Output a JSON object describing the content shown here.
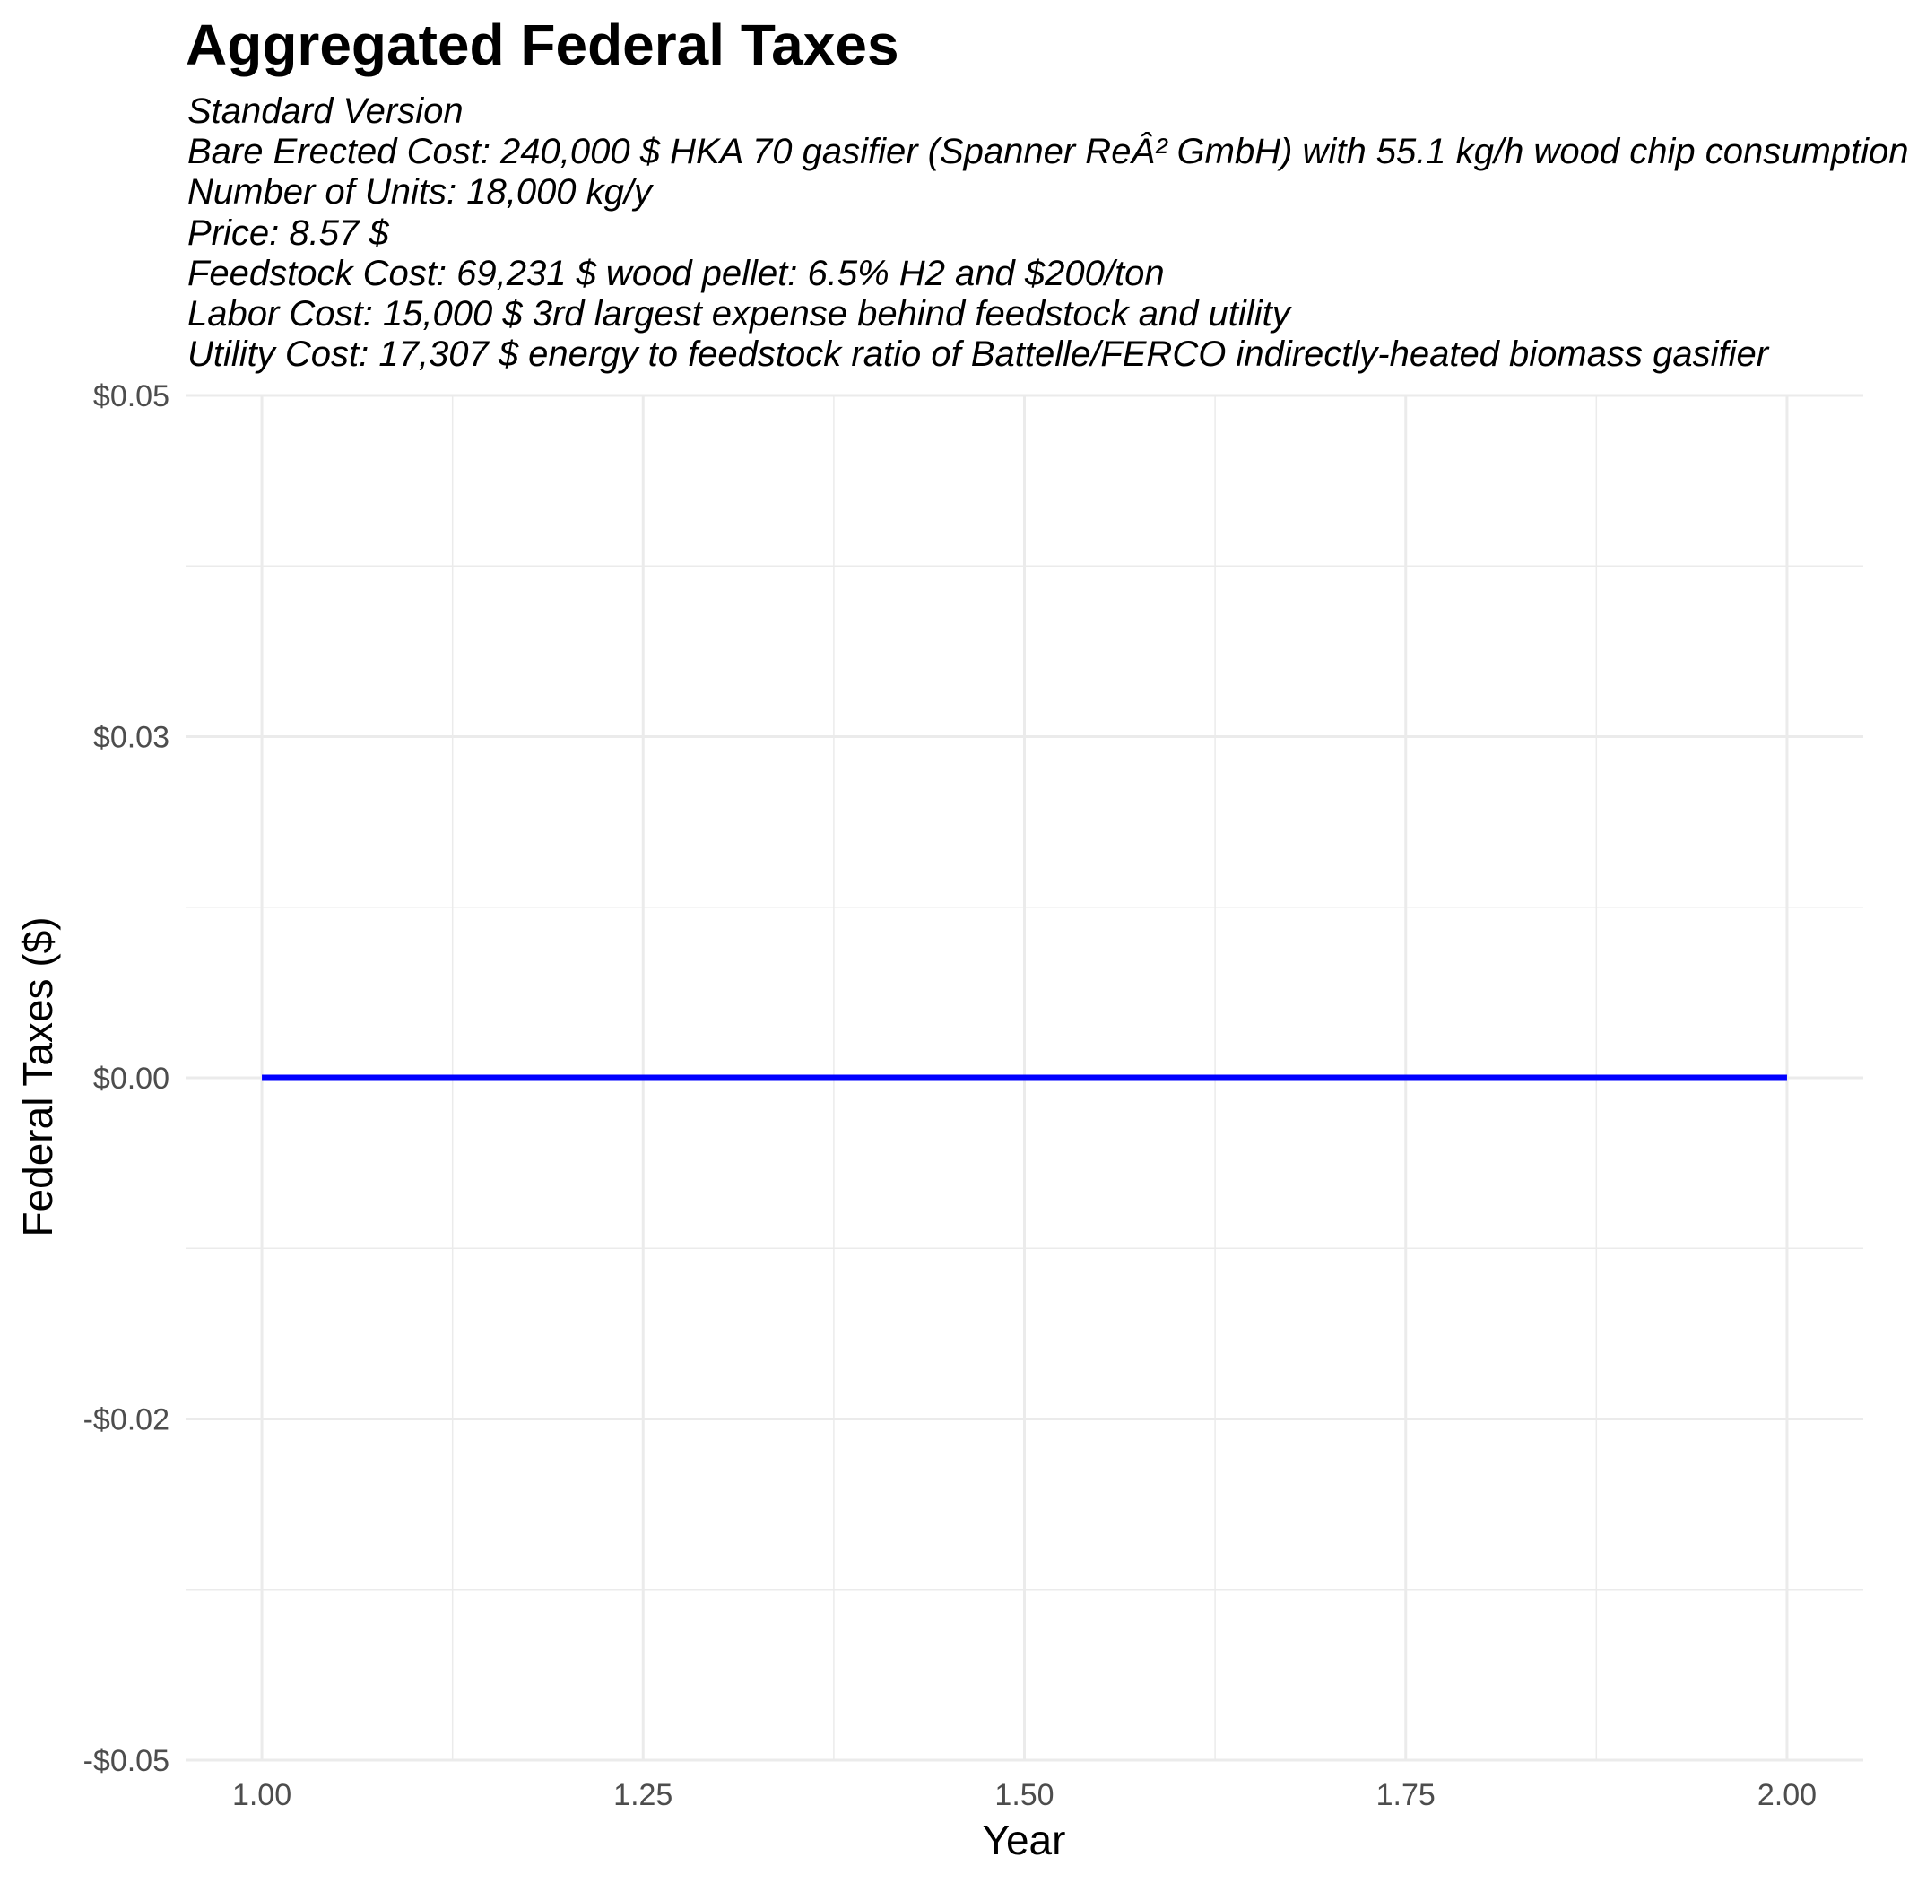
{
  "chart_data": {
    "type": "line",
    "title": "Aggregated Federal Taxes",
    "subtitle_lines": [
      "Standard Version",
      "Bare Erected Cost: 240,000 $ HKA 70 gasifier (Spanner ReÂ² GmbH) with 55.1 kg/h wood chip consumption",
      "Number of Units: 18,000 kg/y",
      "Price: 8.57 $",
      "Feedstock Cost: 69,231 $ wood pellet: 6.5% H2 and $200/ton",
      "Labor Cost: 15,000 $ 3rd largest expense behind feedstock and utility",
      "Utility Cost: 17,307 $ energy to feedstock ratio of Battelle/FERCO indirectly-heated biomass gasifier"
    ],
    "xlabel": "Year",
    "ylabel": "Federal Taxes ($)",
    "xlim": [
      0.95,
      2.05
    ],
    "ylim": [
      -0.05,
      0.05
    ],
    "x_ticks": [
      1.0,
      1.25,
      1.5,
      1.75,
      2.0
    ],
    "x_tick_labels": [
      "1.00",
      "1.25",
      "1.50",
      "1.75",
      "2.00"
    ],
    "y_ticks": [
      -0.05,
      -0.025,
      0.0,
      0.025,
      0.05
    ],
    "y_tick_labels": [
      "-$0.05",
      "-$0.02",
      "$0.00",
      "$0.03",
      "$0.05"
    ],
    "grid": true,
    "series": [
      {
        "x": [
          1.0,
          2.0
        ],
        "y": [
          0.0,
          0.0
        ],
        "color": "#0000ff"
      }
    ]
  }
}
